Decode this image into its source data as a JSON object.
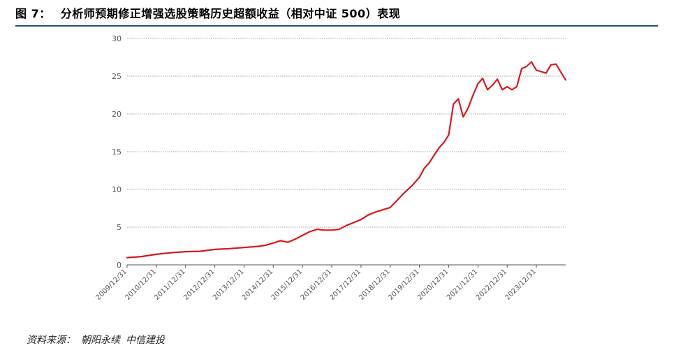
{
  "figure": {
    "number": "图 7：",
    "title": "分析师预期修正增强选股策略历史超额收益（相对中证 500）表现",
    "source_label": "资料来源：",
    "source_text": "朝阳永续",
    "source_org": "中信建投"
  },
  "colors": {
    "line": "#d7191c",
    "title_rule": "#1f4f7f",
    "grid": "#888888"
  },
  "chart_data": {
    "type": "line",
    "title": "",
    "xlabel": "",
    "ylabel": "",
    "ylim": [
      0,
      30
    ],
    "yticks": [
      0,
      5,
      10,
      15,
      20,
      25,
      30
    ],
    "xlim": [
      "2009-12-31",
      "2024-12-31"
    ],
    "xtick_labels": [
      "2009/12/31",
      "2010/12/31",
      "2011/12/31",
      "2012/12/31",
      "2013/12/31",
      "2014/12/31",
      "2015/12/31",
      "2016/12/31",
      "2017/12/31",
      "2018/12/31",
      "2019/12/31",
      "2020/12/31",
      "2021/12/31",
      "2022/12/31",
      "2023/12/31"
    ],
    "grid": "horizontal dashed",
    "legend": "none",
    "series": [
      {
        "values": [
          [
            "2009-12-31",
            0.95
          ],
          [
            "2010-06-30",
            1.1
          ],
          [
            "2010-12-31",
            1.4
          ],
          [
            "2011-06-30",
            1.6
          ],
          [
            "2011-12-31",
            1.75
          ],
          [
            "2012-06-30",
            1.8
          ],
          [
            "2012-12-31",
            2.05
          ],
          [
            "2013-06-30",
            2.15
          ],
          [
            "2013-12-31",
            2.3
          ],
          [
            "2014-06-30",
            2.45
          ],
          [
            "2014-09-30",
            2.6
          ],
          [
            "2014-12-31",
            2.9
          ],
          [
            "2015-03-31",
            3.2
          ],
          [
            "2015-06-30",
            3.0
          ],
          [
            "2015-09-30",
            3.4
          ],
          [
            "2015-12-31",
            3.9
          ],
          [
            "2016-03-31",
            4.4
          ],
          [
            "2016-06-30",
            4.7
          ],
          [
            "2016-09-30",
            4.6
          ],
          [
            "2016-12-31",
            4.6
          ],
          [
            "2017-03-31",
            4.7
          ],
          [
            "2017-06-30",
            5.2
          ],
          [
            "2017-09-30",
            5.6
          ],
          [
            "2017-12-31",
            6.0
          ],
          [
            "2018-03-31",
            6.6
          ],
          [
            "2018-06-30",
            7.0
          ],
          [
            "2018-09-30",
            7.3
          ],
          [
            "2018-12-31",
            7.6
          ],
          [
            "2019-03-31",
            8.6
          ],
          [
            "2019-06-30",
            9.6
          ],
          [
            "2019-09-30",
            10.5
          ],
          [
            "2019-12-31",
            11.6
          ],
          [
            "2020-02-29",
            12.8
          ],
          [
            "2020-04-30",
            13.5
          ],
          [
            "2020-06-30",
            14.5
          ],
          [
            "2020-08-31",
            15.5
          ],
          [
            "2020-10-31",
            16.2
          ],
          [
            "2020-12-31",
            17.2
          ],
          [
            "2021-02-28",
            21.3
          ],
          [
            "2021-04-30",
            22.0
          ],
          [
            "2021-06-30",
            19.6
          ],
          [
            "2021-08-31",
            20.8
          ],
          [
            "2021-10-31",
            22.5
          ],
          [
            "2021-12-31",
            24.0
          ],
          [
            "2022-02-28",
            24.7
          ],
          [
            "2022-04-30",
            23.2
          ],
          [
            "2022-06-30",
            23.8
          ],
          [
            "2022-08-31",
            24.6
          ],
          [
            "2022-10-31",
            23.2
          ],
          [
            "2022-12-31",
            23.6
          ],
          [
            "2023-02-28",
            23.2
          ],
          [
            "2023-04-30",
            23.6
          ],
          [
            "2023-06-30",
            26.0
          ],
          [
            "2023-08-31",
            26.3
          ],
          [
            "2023-10-31",
            26.9
          ],
          [
            "2023-12-31",
            25.8
          ],
          [
            "2024-02-29",
            25.6
          ],
          [
            "2024-04-30",
            25.4
          ],
          [
            "2024-06-30",
            26.5
          ],
          [
            "2024-08-31",
            26.6
          ],
          [
            "2024-12-31",
            24.5
          ]
        ]
      }
    ]
  }
}
